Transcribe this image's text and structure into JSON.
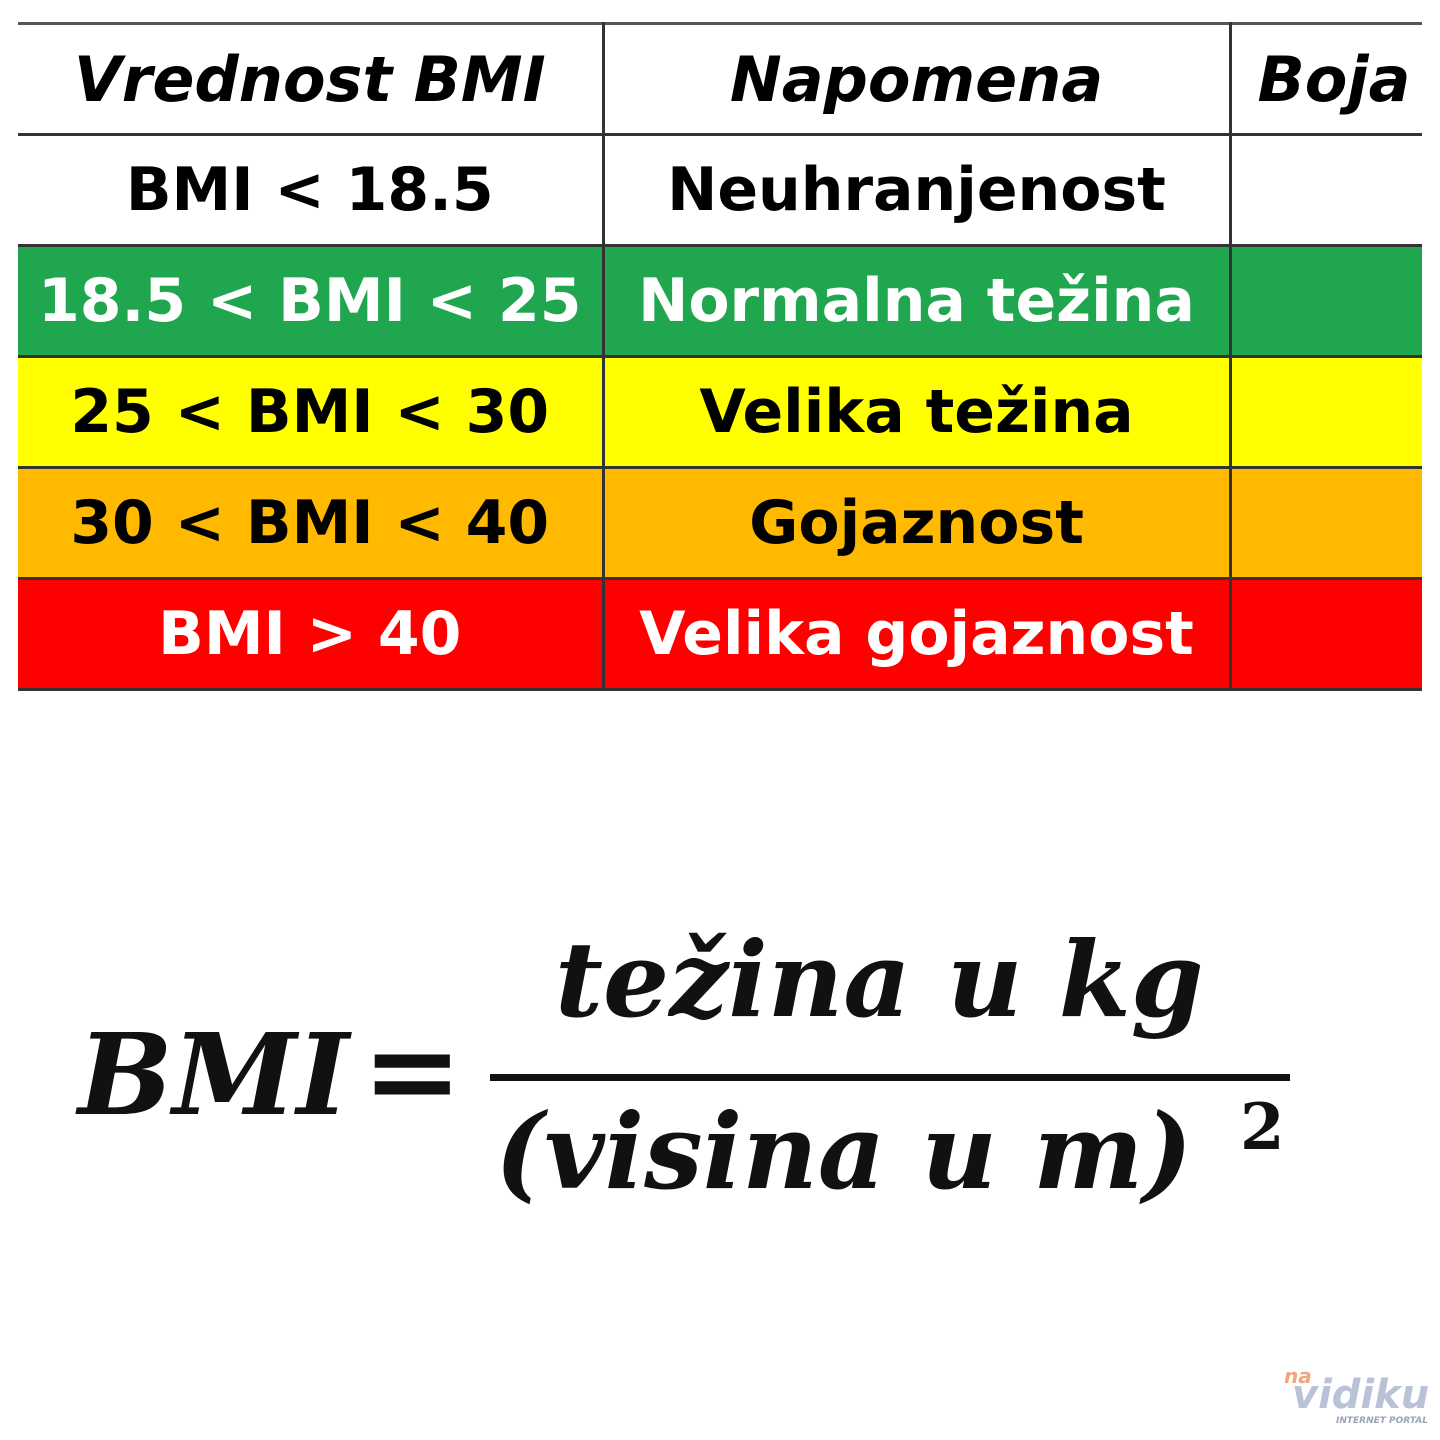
{
  "table": {
    "header": [
      "Vrednost BMI",
      "Napomena",
      "Boja"
    ],
    "rows": [
      {
        "cells": [
          "BMI < 18.5",
          "Neuhranjenost"
        ],
        "color": "#ffffff",
        "text_color": "#000000"
      },
      {
        "cells": [
          "18.5 < BMI < 25",
          "Normalna težina"
        ],
        "color": "#1fa64e",
        "text_color": "#ffffff"
      },
      {
        "cells": [
          "25 < BMI < 30",
          "Velika težina"
        ],
        "color": "#ffff00",
        "text_color": "#000000"
      },
      {
        "cells": [
          "30 < BMI < 40",
          "Gojaznost"
        ],
        "color": "#ffb900",
        "text_color": "#000000"
      },
      {
        "cells": [
          "BMI > 40",
          "Velika gojaznost"
        ],
        "color": "#ff0000",
        "text_color": "#ffffff"
      }
    ]
  },
  "formula": {
    "left": "BMI",
    "equals": "=",
    "numerator": "težina u kg",
    "denominator": "(visina u m)",
    "exponent": "2"
  },
  "watermark": {
    "prefix": "na",
    "name": "vidiku",
    "tagline": "INTERNET PORTAL"
  }
}
